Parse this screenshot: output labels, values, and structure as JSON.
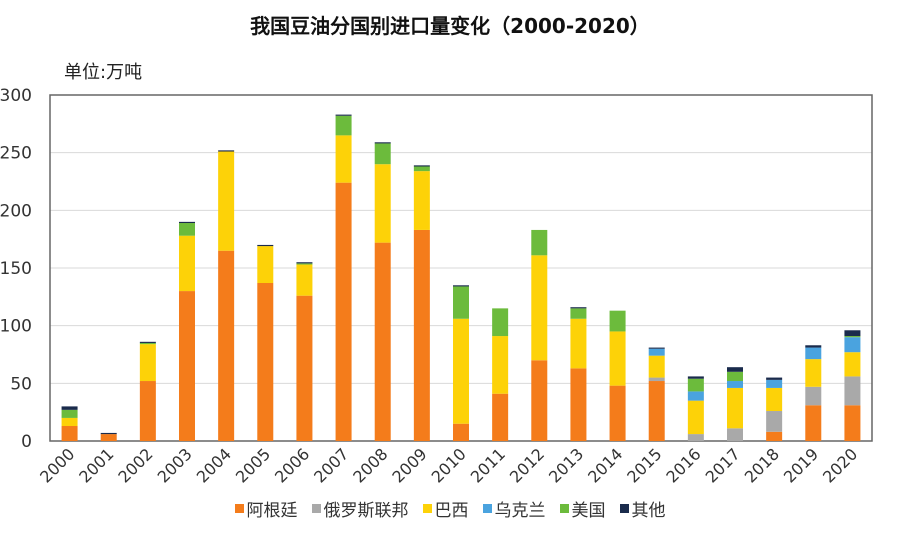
{
  "chart_data": {
    "type": "bar",
    "stacked": true,
    "title": "我国豆油分国别进口量变化（2000-2020）",
    "unit_label": "单位:万吨",
    "ylim": [
      0,
      300
    ],
    "yticks": [
      0,
      50,
      100,
      150,
      200,
      250,
      300
    ],
    "grid": true,
    "legend_position": "bottom",
    "categories": [
      "2000",
      "2001",
      "2002",
      "2003",
      "2004",
      "2005",
      "2006",
      "2007",
      "2008",
      "2009",
      "2010",
      "2011",
      "2012",
      "2013",
      "2014",
      "2015",
      "2016",
      "2017",
      "2018",
      "2019",
      "2020"
    ],
    "series": [
      {
        "name": "阿根廷",
        "color": "#f47c1b",
        "values": [
          13,
          6,
          52,
          130,
          165,
          137,
          126,
          224,
          172,
          183,
          15,
          41,
          70,
          63,
          48,
          52,
          0,
          0,
          8,
          31,
          31
        ]
      },
      {
        "name": "俄罗斯联邦",
        "color": "#a9a9a9",
        "values": [
          0,
          0,
          0,
          0,
          0,
          0,
          0,
          0,
          0,
          0,
          0,
          0,
          0,
          0,
          0,
          3,
          6,
          11,
          18,
          16,
          25
        ]
      },
      {
        "name": "巴西",
        "color": "#fdd208",
        "values": [
          7,
          0,
          32,
          48,
          86,
          32,
          27,
          41,
          68,
          51,
          91,
          50,
          91,
          43,
          47,
          19,
          29,
          35,
          20,
          24,
          21
        ]
      },
      {
        "name": "乌克兰",
        "color": "#4aa3df",
        "values": [
          0,
          0,
          0,
          0,
          0,
          0,
          0,
          0,
          0,
          0,
          0,
          0,
          0,
          0,
          0,
          6,
          8,
          6,
          7,
          10,
          13
        ]
      },
      {
        "name": "美国",
        "color": "#6cbb3c",
        "values": [
          7,
          0,
          1,
          11,
          0,
          0,
          1,
          17,
          18,
          4,
          28,
          24,
          22,
          9,
          18,
          0,
          11,
          8,
          0,
          0,
          1
        ]
      },
      {
        "name": "其他",
        "color": "#1a2b4c",
        "values": [
          3,
          1,
          1,
          1,
          1,
          1,
          1,
          1,
          1,
          1,
          1,
          0,
          0,
          1,
          0,
          1,
          2,
          4,
          2,
          2,
          5
        ]
      }
    ]
  }
}
